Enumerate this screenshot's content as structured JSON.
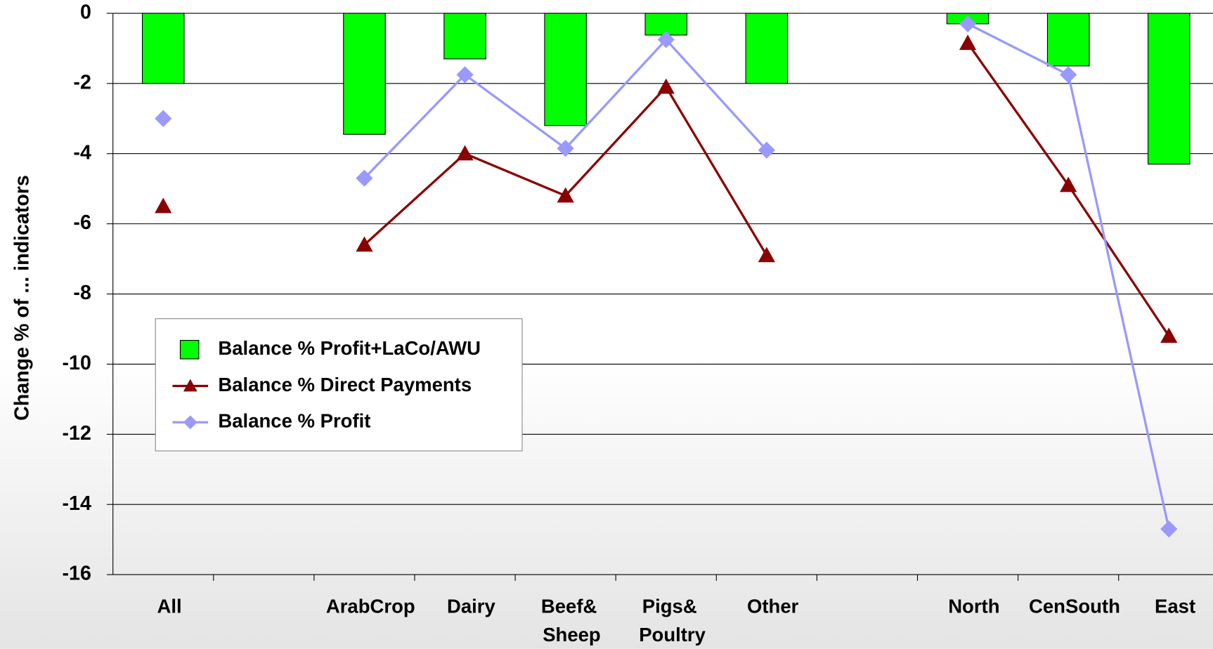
{
  "chart_data": {
    "type": "bar-line",
    "y_label": "Change % of ... indicators",
    "categories": [
      "All",
      null,
      "ArabCrop",
      "Dairy",
      "Beef& Sheep",
      "Pigs& Poultry",
      "Other",
      null,
      "North",
      "CenSouth",
      "East"
    ],
    "series": [
      {
        "name": "Balance % Profit+LaCo/AWU",
        "type": "bar",
        "color": "#00ff00",
        "values": [
          -2.0,
          null,
          -3.45,
          -1.3,
          -3.2,
          -0.62,
          -2.0,
          null,
          -0.3,
          -1.5,
          -4.3
        ]
      },
      {
        "name": "Balance % Direct Payments",
        "type": "line",
        "marker": "triangle",
        "color": "#8b0000",
        "values": [
          -5.5,
          null,
          -6.6,
          -4.0,
          -5.2,
          -2.1,
          -6.9,
          null,
          -0.85,
          -4.9,
          -9.2
        ]
      },
      {
        "name": "Balance % Profit",
        "type": "line",
        "marker": "diamond",
        "color": "#9999ff",
        "values": [
          -3.0,
          null,
          -4.7,
          -1.75,
          -3.85,
          -0.75,
          -3.9,
          null,
          -0.3,
          -1.75,
          -14.7
        ]
      }
    ],
    "ylim": [
      -16,
      0
    ],
    "yticks": [
      0,
      -2,
      -4,
      -6,
      -8,
      -10,
      -12,
      -14,
      -16
    ],
    "grid": true,
    "legend": "lower-left"
  }
}
